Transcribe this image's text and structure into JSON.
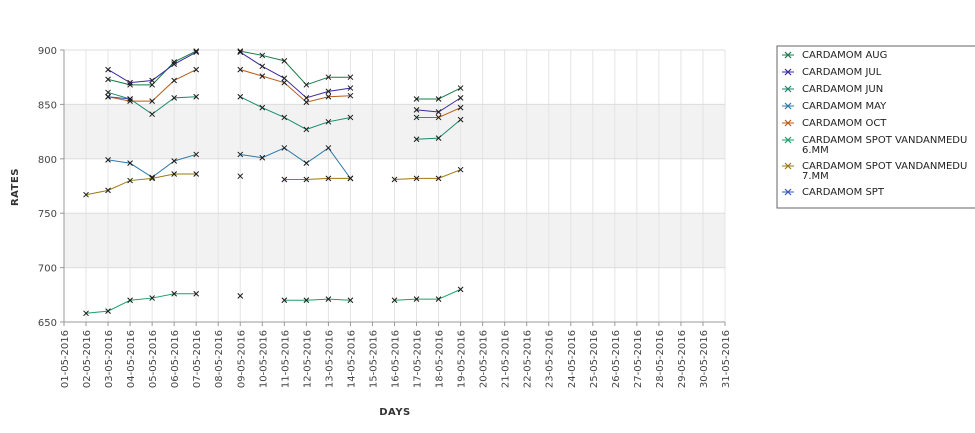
{
  "chart_data": {
    "type": "line",
    "title": "",
    "xlabel": "DAYS",
    "ylabel": "RATES",
    "ylim": [
      650,
      900
    ],
    "yticks": [
      650,
      700,
      750,
      800,
      850,
      900
    ],
    "grid": true,
    "legend_position": "right",
    "x": [
      "01-05-2016",
      "02-05-2016",
      "03-05-2016",
      "04-05-2016",
      "05-05-2016",
      "06-05-2016",
      "07-05-2016",
      "08-05-2016",
      "09-05-2016",
      "10-05-2016",
      "11-05-2016",
      "12-05-2016",
      "13-05-2016",
      "14-05-2016",
      "15-05-2016",
      "16-05-2016",
      "17-05-2016",
      "18-05-2016",
      "19-05-2016",
      "20-05-2016",
      "21-05-2016",
      "22-05-2016",
      "23-05-2016",
      "24-05-2016",
      "25-05-2016",
      "26-05-2016",
      "27-05-2016",
      "28-05-2016",
      "29-05-2016",
      "30-05-2016",
      "31-05-2016"
    ],
    "series": [
      {
        "name": "CARDAMOM AUG",
        "color": "#1a7a4a",
        "values": [
          null,
          null,
          873,
          868,
          868,
          889,
          899,
          null,
          899,
          895,
          890,
          868,
          875,
          875,
          null,
          null,
          855,
          855,
          865,
          null,
          null,
          null,
          null,
          null,
          null,
          null,
          null,
          null,
          null,
          null,
          null
        ]
      },
      {
        "name": "CARDAMOM JUL",
        "color": "#3a2aa0",
        "values": [
          null,
          null,
          882,
          870,
          872,
          887,
          898,
          null,
          898,
          885,
          874,
          856,
          862,
          865,
          null,
          null,
          845,
          843,
          856,
          null,
          null,
          null,
          null,
          null,
          null,
          null,
          null,
          null,
          null,
          null,
          null
        ]
      },
      {
        "name": "CARDAMOM JUN",
        "color": "#1a8a6a",
        "values": [
          null,
          null,
          861,
          855,
          841,
          856,
          857,
          null,
          857,
          847,
          838,
          827,
          834,
          838,
          null,
          null,
          818,
          819,
          836,
          null,
          null,
          null,
          null,
          null,
          null,
          null,
          null,
          null,
          null,
          null,
          null
        ]
      },
      {
        "name": "CARDAMOM MAY",
        "color": "#2a7aa8",
        "values": [
          null,
          null,
          799,
          796,
          783,
          798,
          804,
          null,
          804,
          801,
          810,
          796,
          810,
          782,
          null,
          null,
          null,
          null,
          null,
          null,
          null,
          null,
          null,
          null,
          null,
          null,
          null,
          null,
          null,
          null,
          null
        ]
      },
      {
        "name": "CARDAMOM OCT",
        "color": "#b85c1a",
        "values": [
          null,
          null,
          857,
          853,
          853,
          872,
          882,
          null,
          882,
          876,
          870,
          852,
          857,
          858,
          null,
          null,
          838,
          838,
          847,
          null,
          null,
          null,
          null,
          null,
          null,
          null,
          null,
          null,
          null,
          null,
          null
        ]
      },
      {
        "name": "CARDAMOM SPOT VANDANMEDU 6.MM",
        "color": "#1aa06a",
        "values": [
          null,
          658,
          660,
          670,
          672,
          676,
          676,
          null,
          674,
          null,
          670,
          670,
          671,
          670,
          null,
          670,
          671,
          671,
          680,
          null,
          null,
          null,
          null,
          null,
          null,
          null,
          null,
          null,
          null,
          null,
          null
        ]
      },
      {
        "name": "CARDAMOM SPOT VANDANMEDU 7.MM",
        "color": "#9a7a10",
        "values": [
          null,
          767,
          771,
          780,
          782,
          786,
          786,
          null,
          784,
          null,
          781,
          781,
          782,
          782,
          null,
          781,
          782,
          782,
          790,
          null,
          null,
          null,
          null,
          null,
          null,
          null,
          null,
          null,
          null,
          null,
          null
        ]
      },
      {
        "name": "CARDAMOM SPT",
        "color": "#3a5ab8",
        "values": [
          null,
          null,
          857,
          855,
          null,
          null,
          null,
          null,
          null,
          null,
          null,
          null,
          null,
          null,
          null,
          null,
          null,
          null,
          null,
          null,
          null,
          null,
          null,
          null,
          null,
          null,
          null,
          null,
          null,
          null,
          null
        ]
      }
    ]
  },
  "legend": {
    "items": [
      {
        "line1": "CARDAMOM AUG",
        "line2": ""
      },
      {
        "line1": "CARDAMOM JUL",
        "line2": ""
      },
      {
        "line1": "CARDAMOM JUN",
        "line2": ""
      },
      {
        "line1": "CARDAMOM MAY",
        "line2": ""
      },
      {
        "line1": "CARDAMOM OCT",
        "line2": ""
      },
      {
        "line1": "CARDAMOM SPOT VANDANMEDU",
        "line2": "6.MM"
      },
      {
        "line1": "CARDAMOM SPOT VANDANMEDU",
        "line2": "7.MM"
      },
      {
        "line1": "CARDAMOM SPT",
        "line2": ""
      }
    ]
  }
}
